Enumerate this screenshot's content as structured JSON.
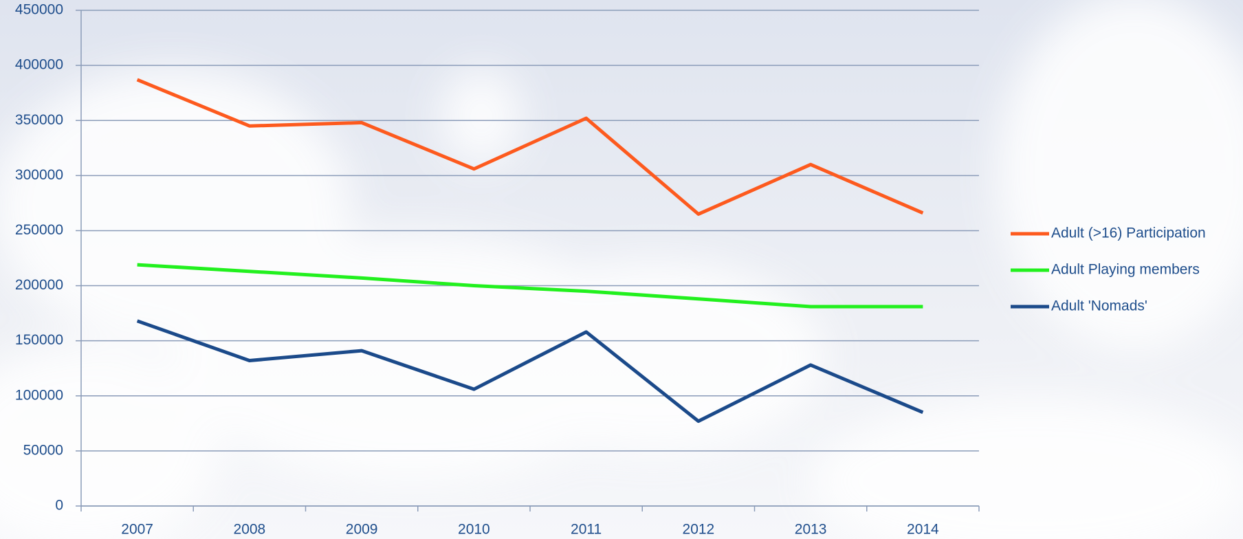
{
  "chart_data": {
    "type": "line",
    "categories": [
      "2007",
      "2008",
      "2009",
      "2010",
      "2011",
      "2012",
      "2013",
      "2014"
    ],
    "series": [
      {
        "name": "Adult (>16) Participation",
        "color": "#fd5a1e",
        "values": [
          387000,
          345000,
          348000,
          306000,
          352000,
          265000,
          310000,
          266000
        ]
      },
      {
        "name": "Adult Playing members",
        "color": "#22f01e",
        "values": [
          219000,
          213000,
          207000,
          200000,
          195000,
          188000,
          181000,
          181000
        ]
      },
      {
        "name": "Adult 'Nomads'",
        "color": "#1b4a8a",
        "values": [
          168000,
          132000,
          141000,
          106000,
          158000,
          77000,
          128000,
          85000
        ]
      }
    ],
    "ylim": [
      0,
      450000
    ],
    "yticks": [
      0,
      50000,
      100000,
      150000,
      200000,
      250000,
      300000,
      350000,
      400000,
      450000
    ],
    "grid": true,
    "legend": "right"
  }
}
